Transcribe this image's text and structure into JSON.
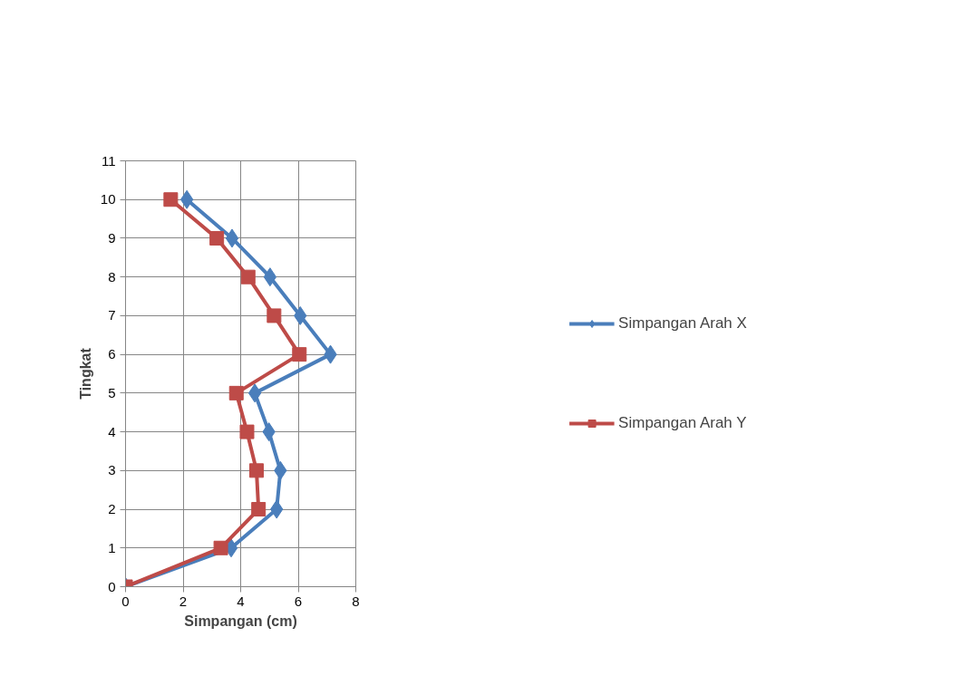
{
  "chart_data": {
    "type": "line",
    "xlabel": "Simpangan (cm)",
    "ylabel": "Tingkat",
    "xlim": [
      0,
      8
    ],
    "xticks": [
      0,
      2,
      4,
      6,
      8
    ],
    "ylim": [
      0,
      11
    ],
    "yticks": [
      0,
      1,
      2,
      3,
      4,
      5,
      6,
      7,
      8,
      9,
      10,
      11
    ],
    "grid": true,
    "legend": "right",
    "line_style": "solid",
    "series": [
      {
        "name": "Simpangan Arah X",
        "color": "#4a7ebb",
        "marker": "diamond",
        "x": [
          0,
          3.67,
          5.25,
          5.38,
          4.98,
          4.49,
          7.12,
          6.07,
          5.02,
          3.7,
          2.13
        ],
        "values": [
          0,
          1,
          2,
          3,
          4,
          5,
          6,
          7,
          8,
          9,
          10
        ]
      },
      {
        "name": "Simpangan Arah Y",
        "color": "#be4b48",
        "marker": "square",
        "x": [
          0,
          3.31,
          4.62,
          4.55,
          4.22,
          3.85,
          6.04,
          5.16,
          4.26,
          3.17,
          1.57
        ],
        "values": [
          0,
          1,
          2,
          3,
          4,
          5,
          6,
          7,
          8,
          9,
          10
        ]
      }
    ]
  }
}
